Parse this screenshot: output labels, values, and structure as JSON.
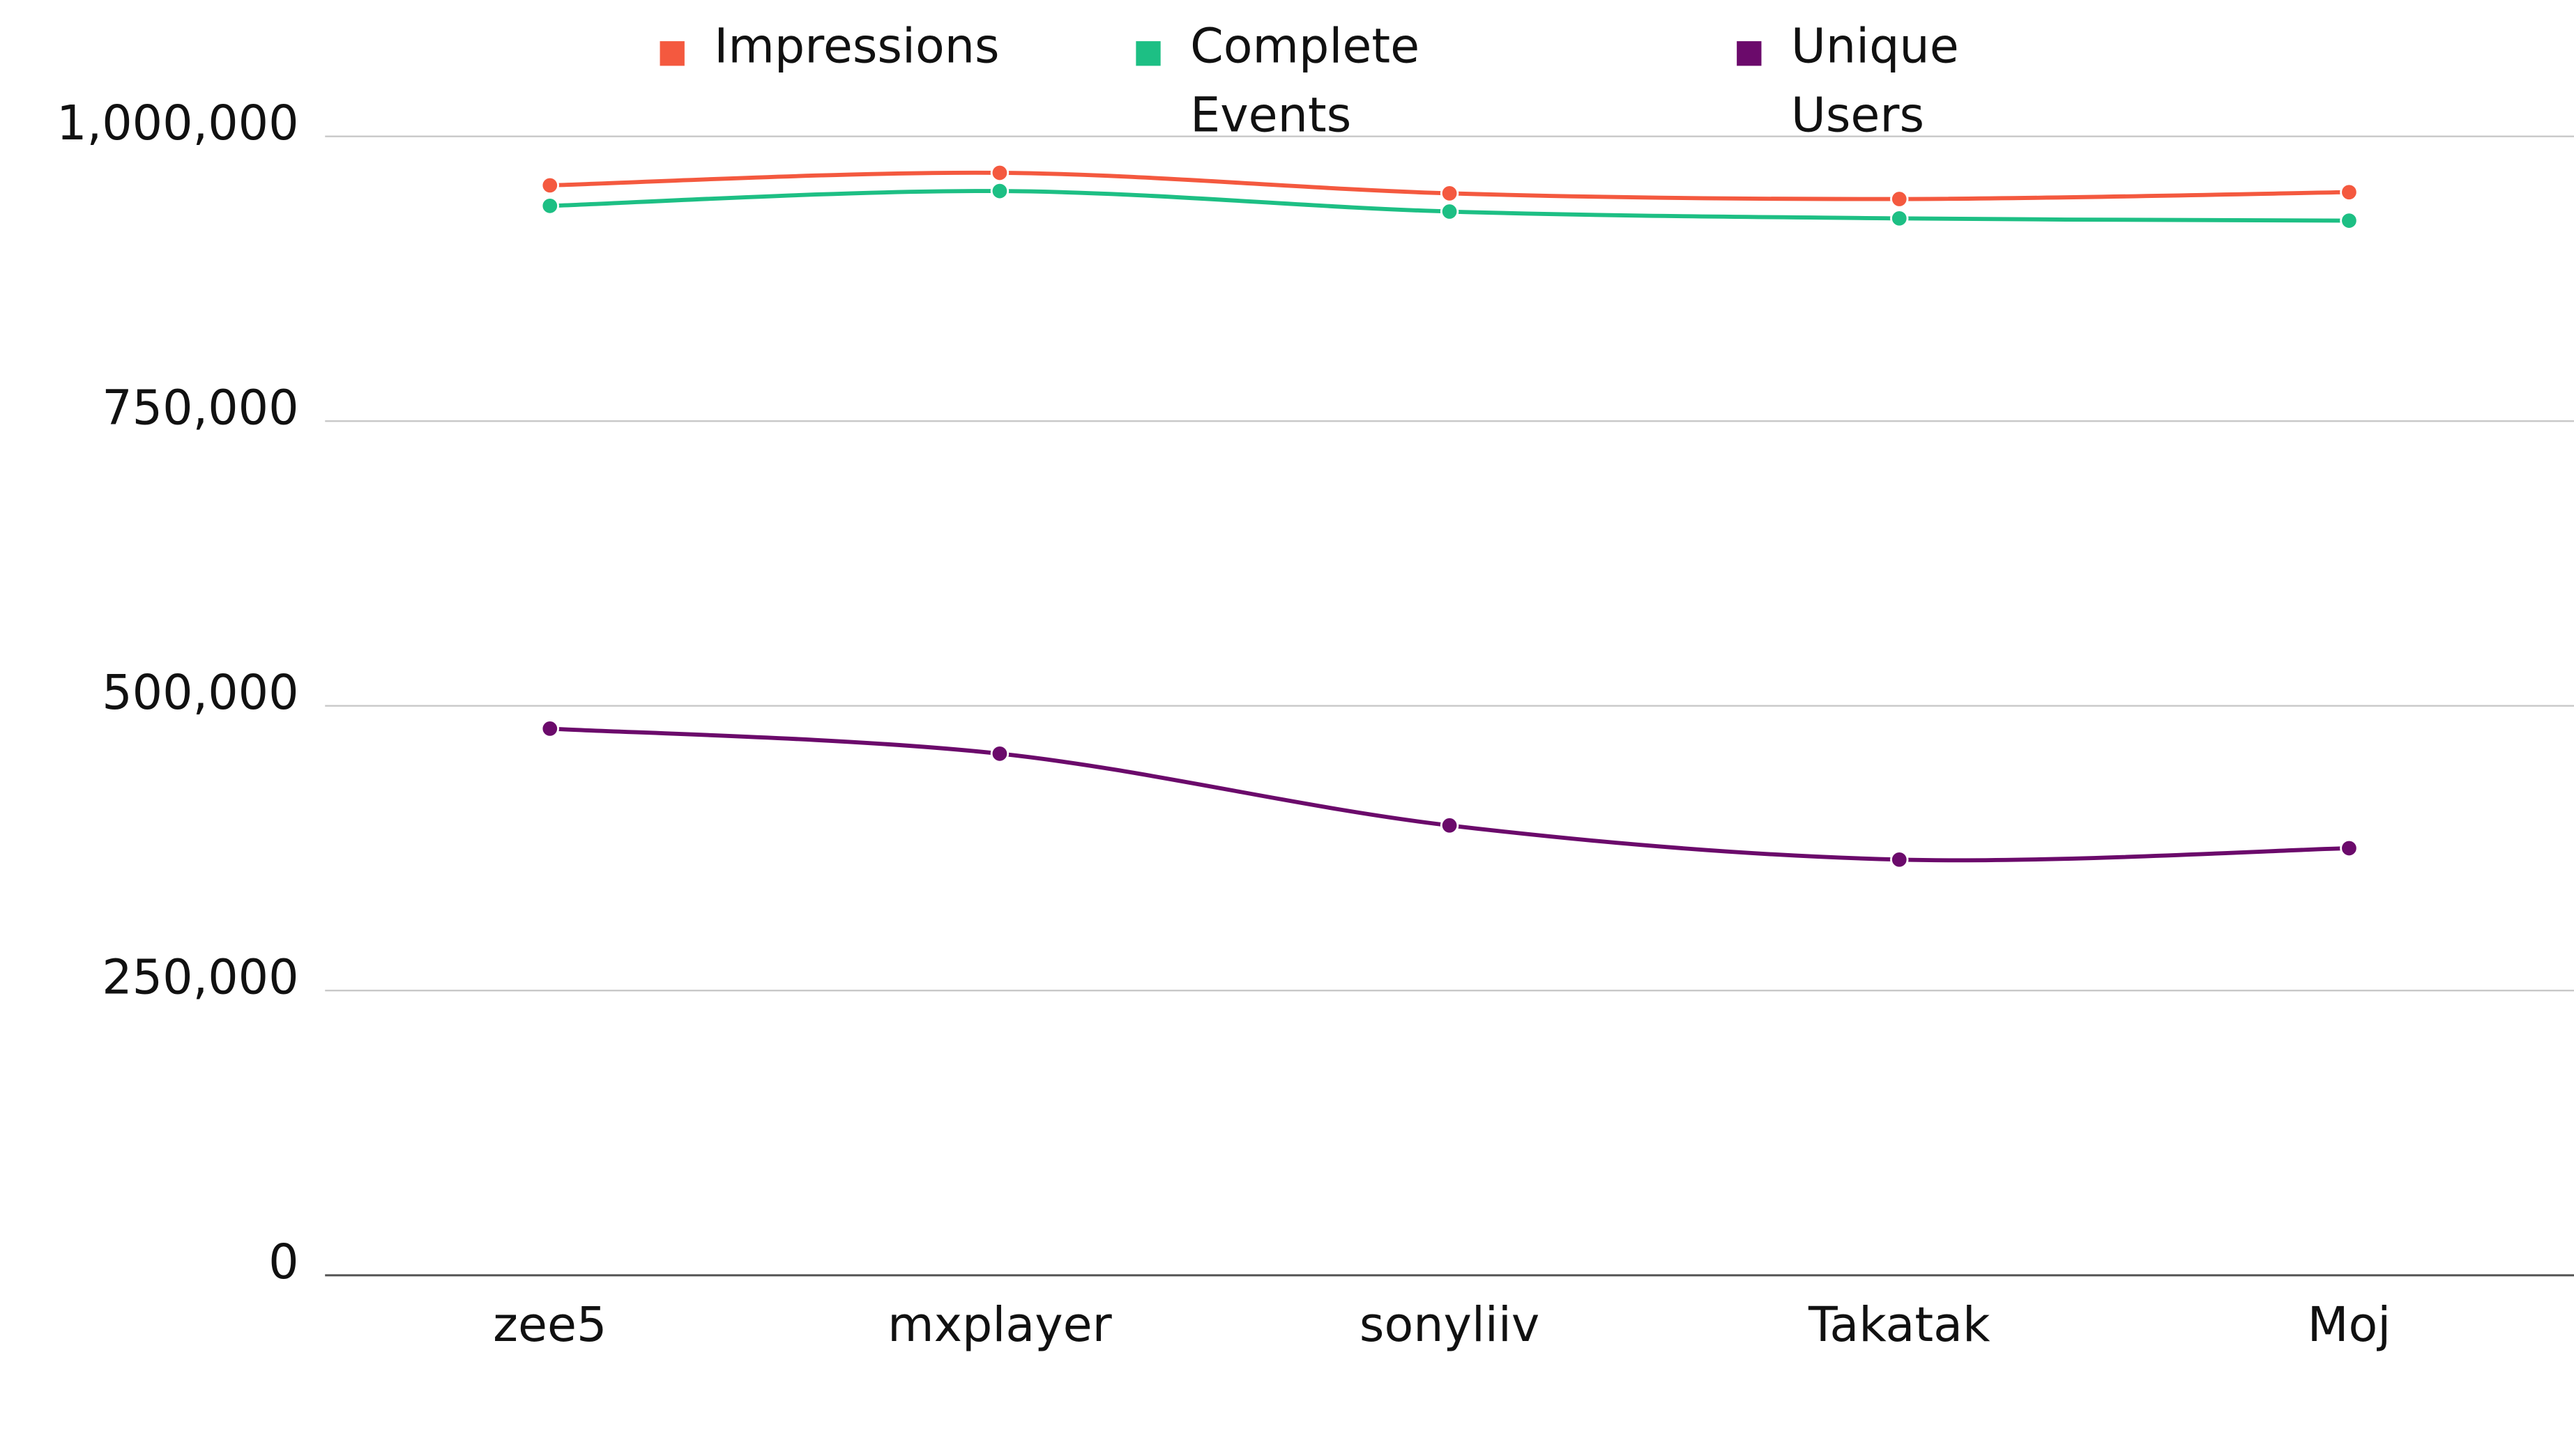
{
  "chart_data": {
    "type": "line",
    "categories": [
      "zee5",
      "mxplayer",
      "sonyliiv",
      "Takatak",
      "Moj"
    ],
    "series": [
      {
        "name": "Impressions",
        "color": "#f4593f",
        "values": [
          957000,
          968000,
          950000,
          945000,
          951000
        ]
      },
      {
        "name": "Complete Events",
        "color": "#1dbf84",
        "values": [
          939000,
          952000,
          934000,
          928000,
          926000
        ]
      },
      {
        "name": "Unique Users",
        "color": "#6b0a6b",
        "values": [
          480000,
          458000,
          395000,
          365000,
          375000
        ]
      }
    ],
    "ylim": [
      0,
      1000000
    ],
    "yticks": [
      0,
      {
        "value": 250000,
        "label": "250,000"
      },
      {
        "value": 500000,
        "label": "500,000"
      },
      {
        "value": 750000,
        "label": "750,000"
      },
      {
        "value": 1000000,
        "label": "1,000,000"
      }
    ],
    "grid": true,
    "legend": "top"
  }
}
